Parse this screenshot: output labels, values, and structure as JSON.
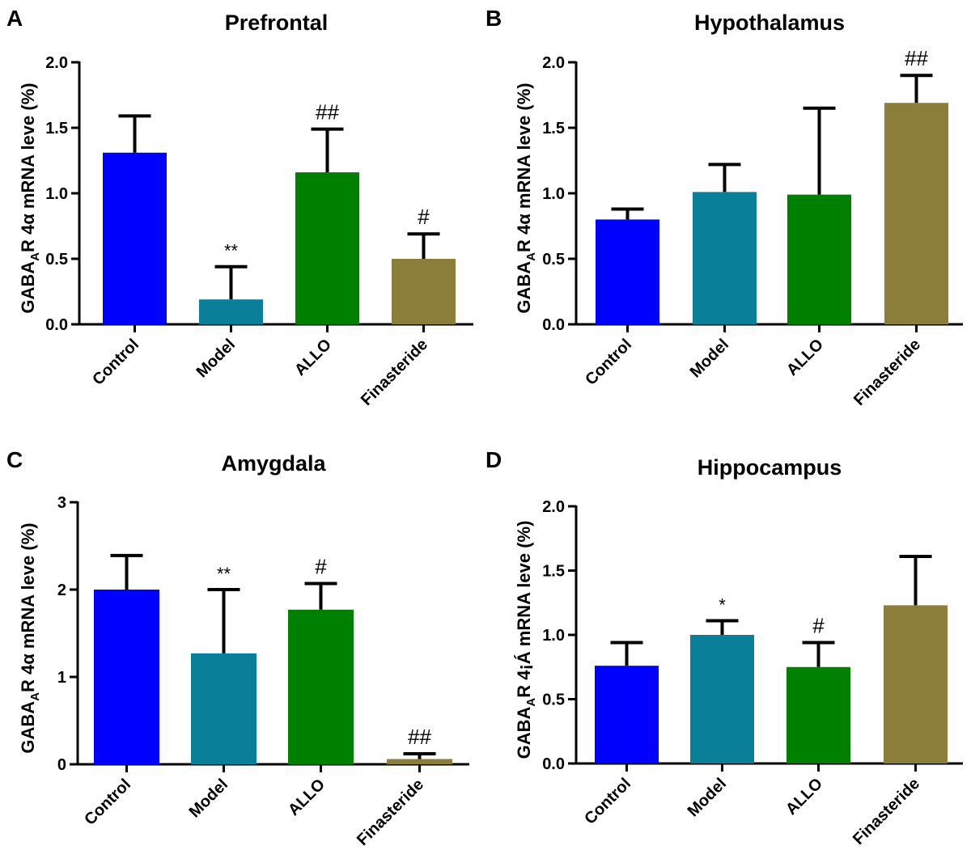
{
  "chart_data": [
    {
      "panel_letter": "A",
      "type": "bar",
      "title": "Prefrontal",
      "ylabel": {
        "prefix": "GABA",
        "sub": "A",
        "suffix": "R 4α mRNA leve (%)"
      },
      "ylim": [
        0,
        2.0
      ],
      "yticks": [
        "0.0",
        "0.5",
        "1.0",
        "1.5",
        "2.0"
      ],
      "categories": [
        "Control",
        "Model",
        "ALLO",
        "Finasteride"
      ],
      "values": [
        1.31,
        0.19,
        1.16,
        0.5
      ],
      "errors_upper": [
        1.59,
        0.44,
        1.49,
        0.69
      ],
      "annotations": [
        "",
        "**",
        "##",
        "#"
      ]
    },
    {
      "panel_letter": "B",
      "type": "bar",
      "title": "Hypothalamus",
      "ylabel": {
        "prefix": "GABA",
        "sub": "A",
        "suffix": "R 4α mRNA leve (%)"
      },
      "ylim": [
        0,
        2.0
      ],
      "yticks": [
        "0.0",
        "0.5",
        "1.0",
        "1.5",
        "2.0"
      ],
      "categories": [
        "Control",
        "Model",
        "ALLO",
        "Finasteride"
      ],
      "values": [
        0.8,
        1.01,
        0.99,
        1.69
      ],
      "errors_upper": [
        0.88,
        1.22,
        1.65,
        1.9
      ],
      "annotations": [
        "",
        "",
        "",
        "##"
      ]
    },
    {
      "panel_letter": "C",
      "type": "bar",
      "title": "Amygdala",
      "ylabel": {
        "prefix": "GABA",
        "sub": "A",
        "suffix": "R 4α mRNA leve (%)"
      },
      "ylim": [
        0,
        3
      ],
      "yticks": [
        "0",
        "1",
        "2",
        "3"
      ],
      "categories": [
        "Control",
        "Model",
        "ALLO",
        "Finasteride"
      ],
      "values": [
        2.0,
        1.27,
        1.77,
        0.06
      ],
      "errors_upper": [
        2.39,
        2.0,
        2.07,
        0.12
      ],
      "annotations": [
        "",
        "**",
        "#",
        "##"
      ]
    },
    {
      "panel_letter": "D",
      "type": "bar",
      "title": "Hippocampus",
      "ylabel": {
        "prefix": "GABA",
        "sub": "A",
        "suffix": "R 4¡Á mRNA leve (%)"
      },
      "ylim": [
        0,
        2.0
      ],
      "yticks": [
        "0.0",
        "0.5",
        "1.0",
        "1.5",
        "2.0"
      ],
      "categories": [
        "Control",
        "Model",
        "ALLO",
        "Finasteride"
      ],
      "values": [
        0.76,
        1.0,
        0.75,
        1.23
      ],
      "errors_upper": [
        0.94,
        1.11,
        0.94,
        1.61
      ],
      "annotations": [
        "",
        "*",
        "#",
        ""
      ]
    }
  ],
  "colors": [
    "#0000ff",
    "#0a7f99",
    "#008000",
    "#8b7d3a"
  ],
  "grid": false,
  "legend": "none"
}
